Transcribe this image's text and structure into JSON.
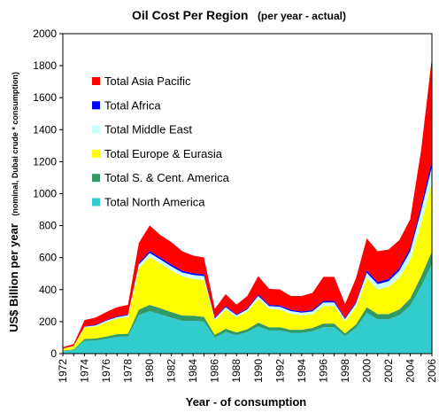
{
  "chart_data": {
    "type": "area",
    "stacked": true,
    "title": "Oil Cost Per Region",
    "subtitle": "(per year - actual)",
    "xlabel": "Year - of consumption",
    "ylabel": "US$ Billion per year",
    "ylabel_note": "(nominal, Dubai crude * consumption)",
    "ylim": [
      0,
      2000
    ],
    "yticks": [
      0,
      200,
      400,
      600,
      800,
      1000,
      1200,
      1400,
      1600,
      1800,
      2000
    ],
    "xlim": [
      1972,
      2006
    ],
    "xticks": [
      1972,
      1974,
      1976,
      1978,
      1980,
      1982,
      1984,
      1986,
      1988,
      1990,
      1992,
      1994,
      1996,
      1998,
      2000,
      2002,
      2004,
      2006
    ],
    "grid": false,
    "legend_position": "top-left",
    "x": [
      1972,
      1973,
      1974,
      1975,
      1976,
      1977,
      1978,
      1979,
      1980,
      1981,
      1982,
      1983,
      1984,
      1985,
      1986,
      1987,
      1988,
      1989,
      1990,
      1991,
      1992,
      1993,
      1994,
      1995,
      1996,
      1997,
      1998,
      1999,
      2000,
      2001,
      2002,
      2003,
      2004,
      2005,
      2006
    ],
    "series": [
      {
        "name": "Total North America",
        "color": "#33CCCC",
        "values": [
          15,
          22,
          80,
          82,
          93,
          105,
          108,
          240,
          265,
          245,
          225,
          205,
          205,
          200,
          100,
          135,
          115,
          135,
          170,
          145,
          145,
          130,
          130,
          140,
          165,
          165,
          110,
          160,
          255,
          215,
          215,
          240,
          300,
          420,
          560
        ]
      },
      {
        "name": "Total S. & Cent. America",
        "color": "#339966",
        "values": [
          3,
          4,
          12,
          12,
          14,
          16,
          16,
          35,
          40,
          38,
          35,
          33,
          32,
          30,
          17,
          20,
          17,
          18,
          23,
          20,
          20,
          19,
          19,
          21,
          23,
          23,
          16,
          22,
          35,
          32,
          32,
          36,
          45,
          62,
          80
        ]
      },
      {
        "name": "Total Europe & Eurasia",
        "color": "#FFFF00",
        "values": [
          12,
          20,
          70,
          75,
          90,
          97,
          105,
          260,
          300,
          280,
          260,
          245,
          230,
          230,
          90,
          120,
          95,
          110,
          150,
          115,
          110,
          100,
          90,
          85,
          110,
          110,
          75,
          110,
          180,
          155,
          170,
          200,
          240,
          330,
          430
        ]
      },
      {
        "name": "Total Middle East",
        "color": "#CCFFFF",
        "values": [
          1,
          2,
          6,
          7,
          9,
          10,
          11,
          22,
          24,
          25,
          25,
          24,
          25,
          25,
          12,
          15,
          13,
          14,
          18,
          17,
          18,
          17,
          17,
          18,
          22,
          22,
          15,
          22,
          35,
          32,
          35,
          42,
          55,
          80,
          100
        ]
      },
      {
        "name": "Total Africa",
        "color": "#0000FF",
        "values": [
          1,
          1,
          3,
          4,
          4,
          5,
          5,
          10,
          12,
          12,
          12,
          11,
          11,
          11,
          6,
          7,
          6,
          7,
          9,
          8,
          8,
          8,
          8,
          9,
          10,
          10,
          7,
          10,
          15,
          14,
          15,
          18,
          22,
          30,
          40
        ]
      },
      {
        "name": "Total Asia Pacific",
        "color": "#FF0000",
        "values": [
          8,
          11,
          39,
          45,
          50,
          57,
          60,
          125,
          160,
          140,
          140,
          122,
          110,
          105,
          55,
          75,
          60,
          77,
          115,
          100,
          100,
          86,
          96,
          107,
          150,
          150,
          87,
          146,
          200,
          192,
          183,
          174,
          178,
          348,
          640
        ]
      }
    ]
  }
}
